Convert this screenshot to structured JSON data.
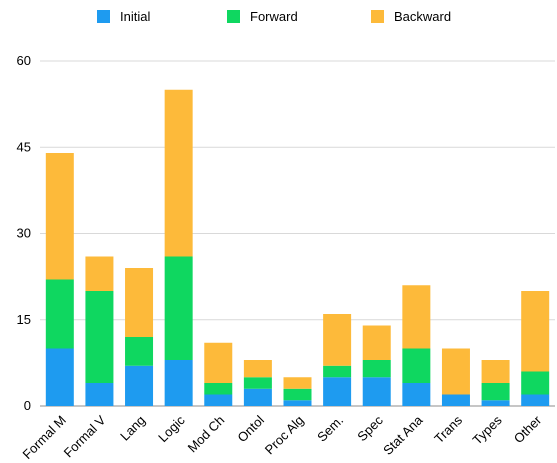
{
  "chart_data": {
    "type": "bar",
    "stacked": true,
    "categories": [
      "Formal M",
      "Formal V",
      "Lang",
      "Logic",
      "Mod Ch",
      "Ontol",
      "Proc Alg",
      "Sem.",
      "Spec",
      "Stat Ana",
      "Trans",
      "Types",
      "Other"
    ],
    "series": [
      {
        "name": "Initial",
        "color": "#1e9bf0",
        "values": [
          10,
          4,
          7,
          8,
          2,
          3,
          1,
          5,
          5,
          4,
          2,
          1,
          2
        ]
      },
      {
        "name": "Forward",
        "color": "#0fd760",
        "values": [
          12,
          16,
          5,
          18,
          2,
          2,
          2,
          2,
          3,
          6,
          0,
          3,
          4
        ]
      },
      {
        "name": "Backward",
        "color": "#fdba3a",
        "values": [
          22,
          6,
          12,
          29,
          7,
          3,
          2,
          9,
          6,
          11,
          8,
          4,
          14
        ]
      }
    ],
    "yticks": [
      0,
      15,
      30,
      45,
      60
    ],
    "ylim": [
      0,
      60
    ],
    "grid": true,
    "legend_position": "top"
  }
}
